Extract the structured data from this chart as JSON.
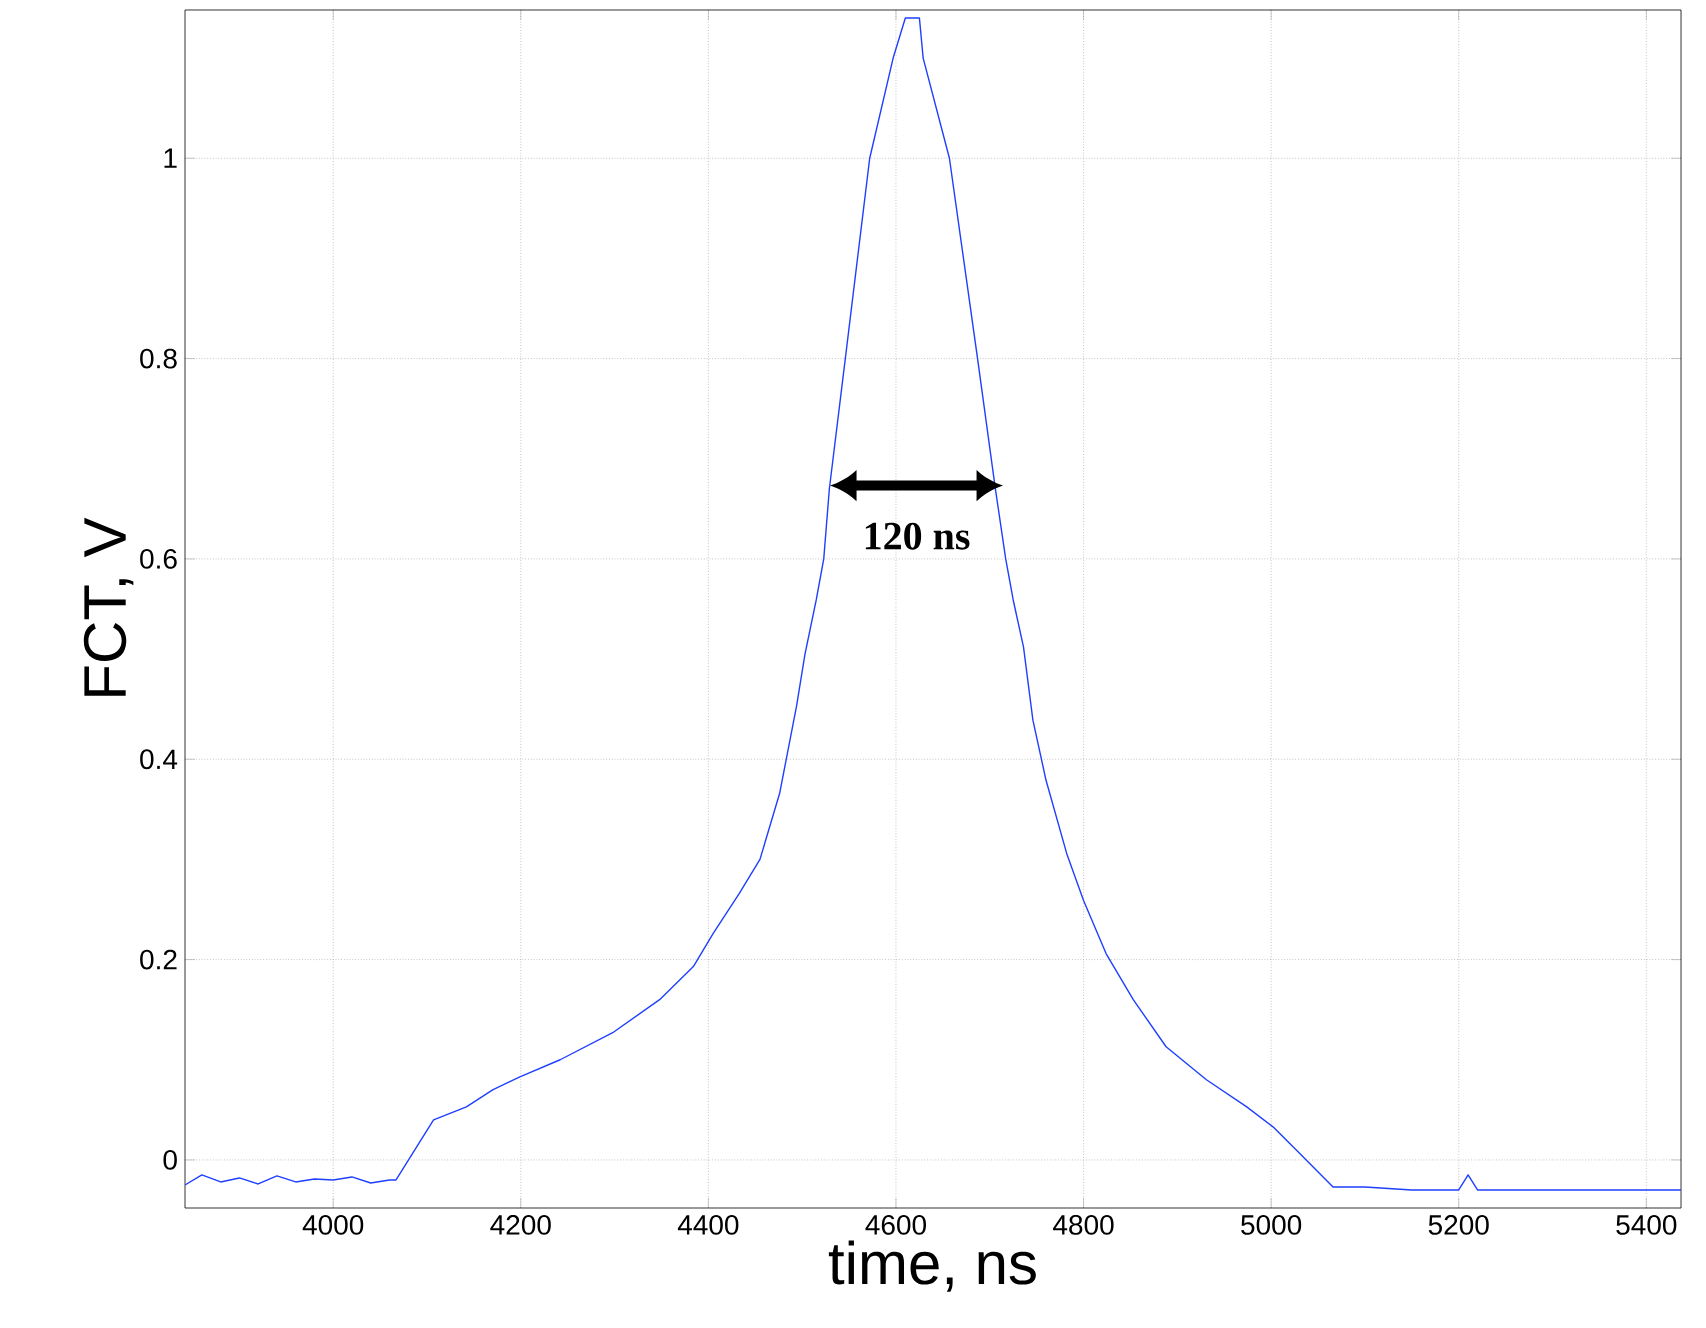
{
  "chart_data": {
    "type": "line",
    "xlabel": "time, ns",
    "ylabel": "FCT, V",
    "xlim": [
      3842,
      5437
    ],
    "ylim": [
      -0.048,
      1.148
    ],
    "xticks": [
      4000,
      4200,
      4400,
      4600,
      4800,
      5000,
      5200,
      5400
    ],
    "yticks": [
      0,
      0.2,
      0.4,
      0.6,
      0.8,
      1
    ],
    "grid": true,
    "marker": "none",
    "line_style": "solid",
    "annotations": [
      "120 ns"
    ],
    "series": [
      {
        "color": "#1f3fff",
        "x": [
          3842,
          3860,
          3880,
          3900,
          3920,
          3940,
          3960,
          3980,
          4000,
          4020,
          4040,
          4060,
          4067,
          4085,
          4107,
          4142,
          4170,
          4199,
          4242,
          4298,
          4348,
          4384,
          4405,
          4433,
          4455,
          4476,
          4494,
          4503,
          4515,
          4523,
          4529,
          4546,
          4572,
          4597,
          4610,
          4618,
          4625,
          4629,
          4657,
          4687,
          4706,
          4717,
          4725,
          4736,
          4746,
          4760,
          4782,
          4800,
          4824,
          4853,
          4888,
          4931,
          4974,
          5002,
          5030,
          5066,
          5100,
          5150,
          5200,
          5210,
          5220,
          5300,
          5437
        ],
        "values": [
          -0.025,
          -0.015,
          -0.022,
          -0.018,
          -0.024,
          -0.016,
          -0.022,
          -0.019,
          -0.02,
          -0.017,
          -0.023,
          -0.02,
          -0.02,
          0.007,
          0.04,
          0.053,
          0.07,
          0.083,
          0.1,
          0.127,
          0.16,
          0.193,
          0.226,
          0.266,
          0.3,
          0.366,
          0.453,
          0.505,
          0.559,
          0.6,
          0.67,
          0.8,
          1.0,
          1.1,
          1.14,
          1.14,
          1.14,
          1.1,
          1.0,
          0.8,
          0.67,
          0.6,
          0.559,
          0.512,
          0.439,
          0.379,
          0.306,
          0.259,
          0.206,
          0.16,
          0.113,
          0.08,
          0.053,
          0.033,
          0.007,
          -0.027,
          -0.027,
          -0.03,
          -0.03,
          -0.015,
          -0.03,
          -0.03,
          -0.03
        ]
      }
    ]
  }
}
